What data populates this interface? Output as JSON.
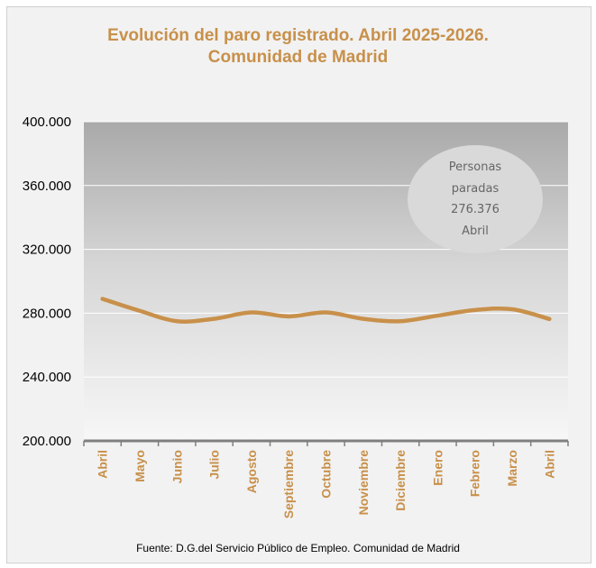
{
  "chart_data": {
    "type": "line",
    "title": "Evolución del paro registrado. Abril 2025-2026.",
    "subtitle": "Comunidad  de Madrid",
    "categories": [
      "Abril",
      "Mayo",
      "Junio",
      "Julio",
      "Agosto",
      "Septiembre",
      "Octubre",
      "Noviembre",
      "Diciembre",
      "Enero",
      "Febrero",
      "Marzo",
      "Abril"
    ],
    "series": [
      {
        "values": [
          289000,
          281500,
          275000,
          276500,
          280500,
          278000,
          280500,
          276500,
          275000,
          278500,
          282000,
          282500,
          276376
        ]
      }
    ],
    "ylim": [
      200000,
      400000
    ],
    "yticks": [
      "400.000",
      "360.000",
      "320.000",
      "280.000",
      "240.000",
      "200.000"
    ],
    "ytick_values": [
      400000,
      360000,
      320000,
      280000,
      240000,
      200000
    ],
    "grid": true,
    "line_color": "#c8904a",
    "callout": {
      "lines": [
        "Personas",
        "paradas",
        "276.376",
        "Abril"
      ]
    },
    "source": "Fuente: D.G.del Servicio Público  de Empleo.  Comunidad   de Madrid"
  },
  "colors": {
    "title": "#c8904a",
    "line": "#c8904a",
    "callout_fill": "#d9d9d9",
    "callout_text": "#666666"
  }
}
